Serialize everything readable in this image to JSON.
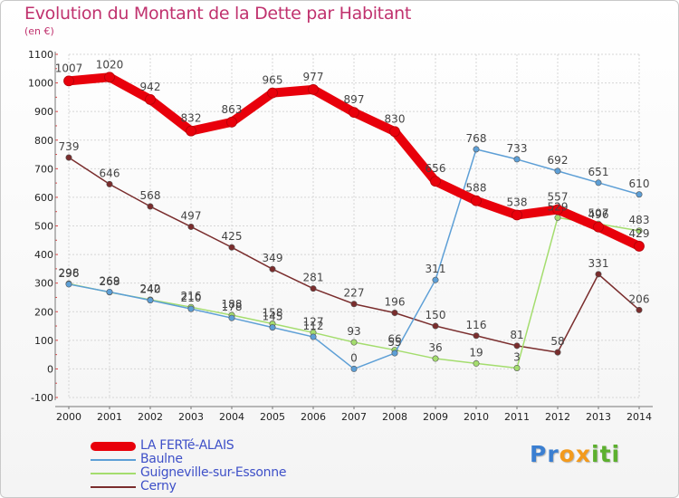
{
  "title": "Evolution du Montant de la Dette par Habitant",
  "subtitle": "(en €)",
  "logo": [
    {
      "text": "P",
      "color": "#3b7fd1"
    },
    {
      "text": "r",
      "color": "#3b7fd1"
    },
    {
      "text": "o",
      "color": "#f39a1c"
    },
    {
      "text": "x",
      "color": "#f39a1c"
    },
    {
      "text": "i",
      "color": "#5cb02e"
    },
    {
      "text": "t",
      "color": "#5cb02e"
    },
    {
      "text": "i",
      "color": "#5cb02e"
    }
  ],
  "chart_data": {
    "type": "line",
    "title": "Evolution du Montant de la Dette par Habitant",
    "ylabel": "(en €)",
    "xlabel": "",
    "x": [
      "2000",
      "2001",
      "2002",
      "2003",
      "2004",
      "2005",
      "2006",
      "2007",
      "2008",
      "2009",
      "2010",
      "2011",
      "2012",
      "2013",
      "2014"
    ],
    "ylim": [
      -100,
      1100
    ],
    "yticks": [
      "-100",
      "0",
      "100",
      "200",
      "300",
      "400",
      "500",
      "600",
      "700",
      "800",
      "900",
      "1000",
      "1100"
    ],
    "grid": true,
    "legend_position": "bottom-left",
    "series": [
      {
        "name": "LA FERTé-ALAIS",
        "color": "#e8000b",
        "values": [
          1007,
          1020,
          942,
          832,
          863,
          965,
          977,
          897,
          830,
          656,
          588,
          538,
          557,
          496,
          429
        ]
      },
      {
        "name": "Baulne",
        "color": "#5d9fd6",
        "values": [
          296,
          269,
          240,
          210,
          178,
          145,
          112,
          0,
          55,
          311,
          768,
          733,
          692,
          651,
          610
        ]
      },
      {
        "name": "Guigneville-sur-Essonne",
        "color": "#a4dd6e",
        "values": [
          298,
          268,
          242,
          216,
          188,
          158,
          127,
          93,
          66,
          36,
          19,
          3,
          529,
          507,
          483
        ]
      },
      {
        "name": "Cerny",
        "color": "#7a2d2d",
        "values": [
          739,
          646,
          568,
          497,
          425,
          349,
          281,
          227,
          196,
          150,
          116,
          81,
          58,
          331,
          206
        ]
      }
    ]
  }
}
